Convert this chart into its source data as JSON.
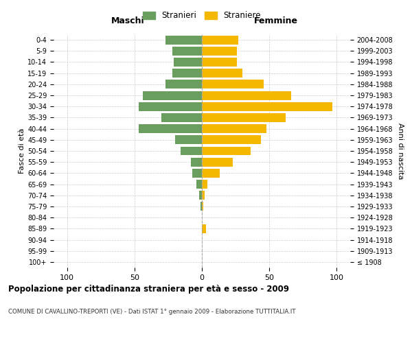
{
  "age_groups": [
    "100+",
    "95-99",
    "90-94",
    "85-89",
    "80-84",
    "75-79",
    "70-74",
    "65-69",
    "60-64",
    "55-59",
    "50-54",
    "45-49",
    "40-44",
    "35-39",
    "30-34",
    "25-29",
    "20-24",
    "15-19",
    "10-14",
    "5-9",
    "0-4"
  ],
  "birth_years": [
    "≤ 1908",
    "1909-1913",
    "1914-1918",
    "1919-1923",
    "1924-1928",
    "1929-1933",
    "1934-1938",
    "1939-1943",
    "1944-1948",
    "1949-1953",
    "1954-1958",
    "1959-1963",
    "1964-1968",
    "1969-1973",
    "1974-1978",
    "1979-1983",
    "1984-1988",
    "1989-1993",
    "1994-1998",
    "1999-2003",
    "2004-2008"
  ],
  "males": [
    0,
    0,
    0,
    0,
    0,
    1,
    2,
    4,
    7,
    8,
    16,
    20,
    47,
    30,
    47,
    44,
    27,
    22,
    21,
    22,
    27
  ],
  "females": [
    0,
    0,
    0,
    3,
    0,
    1,
    2,
    4,
    13,
    23,
    36,
    44,
    48,
    62,
    97,
    66,
    46,
    30,
    26,
    26,
    27
  ],
  "male_color": "#6a9e5f",
  "female_color": "#f5b800",
  "title": "Popolazione per cittadinanza straniera per età e sesso - 2009",
  "subtitle": "COMUNE DI CAVALLINO-TREPORTI (VE) - Dati ISTAT 1° gennaio 2009 - Elaborazione TUTTITALIA.IT",
  "xlabel_left": "Maschi",
  "xlabel_right": "Femmine",
  "ylabel_left": "Fasce di età",
  "ylabel_right": "Anni di nascita",
  "legend_male": "Stranieri",
  "legend_female": "Straniere",
  "xlim": 110,
  "background_color": "#ffffff",
  "grid_color": "#cccccc"
}
